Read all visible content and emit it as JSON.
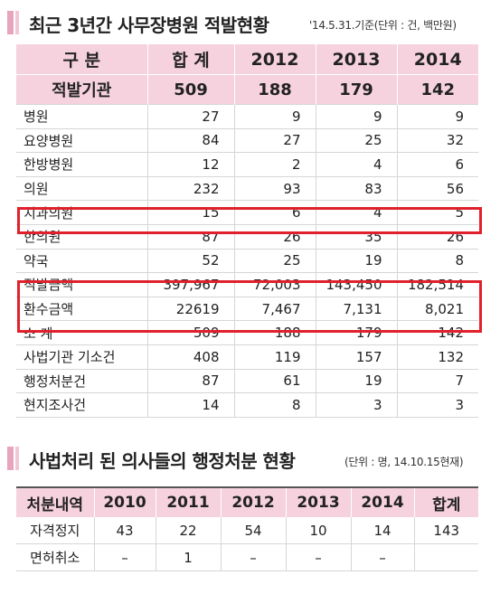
{
  "section1": {
    "title": "최근 3년간 사무장병원 적발현황",
    "note": "'14.5.31.기준(단위 : 건, 백만원)",
    "headers": [
      "구 분",
      "합 계",
      "2012",
      "2013",
      "2014"
    ],
    "summary": {
      "label": "적발기관",
      "values": [
        "509",
        "188",
        "179",
        "142"
      ]
    },
    "rows": [
      {
        "label": "병원",
        "values": [
          "27",
          "9",
          "9",
          "9"
        ]
      },
      {
        "label": "요양병원",
        "values": [
          "84",
          "27",
          "25",
          "32"
        ]
      },
      {
        "label": "한방병원",
        "values": [
          "12",
          "2",
          "4",
          "6"
        ]
      },
      {
        "label": "의원",
        "values": [
          "232",
          "93",
          "83",
          "56"
        ]
      },
      {
        "label": "치과의원",
        "values": [
          "15",
          "6",
          "4",
          "5"
        ]
      },
      {
        "label": "한의원",
        "values": [
          "87",
          "26",
          "35",
          "26"
        ]
      },
      {
        "label": "약국",
        "values": [
          "52",
          "25",
          "19",
          "8"
        ]
      },
      {
        "label": "적발금액",
        "values": [
          "397,967",
          "72,003",
          "143,450",
          "182,514"
        ]
      },
      {
        "label": "환수금액",
        "values": [
          "22619",
          "7,467",
          "7,131",
          "8,021"
        ]
      },
      {
        "label": "소 계",
        "values": [
          "509",
          "188",
          "179",
          "142"
        ]
      },
      {
        "label": "사법기관 기소건",
        "values": [
          "408",
          "119",
          "157",
          "132"
        ]
      },
      {
        "label": "행정처분건",
        "values": [
          "87",
          "61",
          "19",
          "7"
        ]
      },
      {
        "label": "현지조사건",
        "values": [
          "14",
          "8",
          "3",
          "3"
        ]
      }
    ]
  },
  "section2": {
    "title": "사법처리 된 의사들의 행정처분 현황",
    "note": "(단위 : 명, 14.10.15현재)",
    "headers": [
      "처분내역",
      "2010",
      "2011",
      "2012",
      "2013",
      "2014",
      "합계"
    ],
    "rows": [
      {
        "label": "자격정지",
        "values": [
          "43",
          "22",
          "54",
          "10",
          "14",
          "143"
        ]
      },
      {
        "label": "면허취소",
        "values": [
          "–",
          "1",
          "–",
          "–",
          "–",
          ""
        ]
      }
    ]
  },
  "colors": {
    "header_pink": "#f6d2de",
    "title_bar_pink": "#e8a3bd",
    "highlight_red": "#e0212c"
  }
}
